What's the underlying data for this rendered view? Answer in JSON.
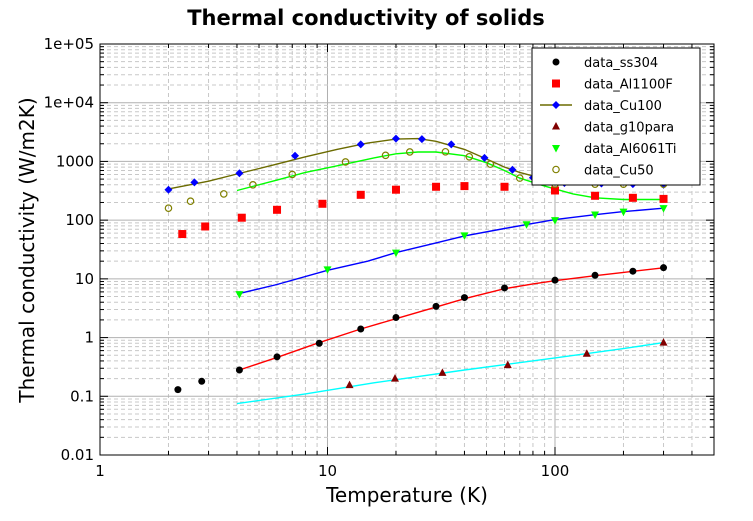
{
  "chart_data": {
    "type": "scatter",
    "title": "Thermal conductivity of solids",
    "xlabel": "Temperature (K)",
    "ylabel": "Thermal conductivity (W/m2K)",
    "xscale": "log",
    "yscale": "log",
    "xlim": [
      1,
      500
    ],
    "ylim": [
      0.01,
      100000
    ],
    "grid": true,
    "legend_position": "top-right",
    "x_ticks": [
      {
        "v": 1,
        "label": "1"
      },
      {
        "v": 10,
        "label": "10"
      },
      {
        "v": 100,
        "label": "100"
      }
    ],
    "y_ticks": [
      {
        "v": 0.01,
        "label": "0.01"
      },
      {
        "v": 0.1,
        "label": "0.1"
      },
      {
        "v": 1,
        "label": "1"
      },
      {
        "v": 10,
        "label": "10"
      },
      {
        "v": 100,
        "label": "100"
      },
      {
        "v": 1000,
        "label": "1000"
      },
      {
        "v": 10000,
        "label": "1e+04"
      },
      {
        "v": 100000,
        "label": "1e+05"
      }
    ],
    "series": [
      {
        "name": "data_ss304",
        "marker": "circle",
        "color": "#000000",
        "points": [
          [
            2.2,
            0.13
          ],
          [
            2.8,
            0.18
          ],
          [
            4.1,
            0.28
          ],
          [
            6.0,
            0.47
          ],
          [
            9.2,
            0.8
          ],
          [
            14,
            1.4
          ],
          [
            20,
            2.2
          ],
          [
            30,
            3.4
          ],
          [
            40,
            4.8
          ],
          [
            60,
            7
          ],
          [
            100,
            9.5
          ],
          [
            150,
            11.5
          ],
          [
            220,
            13.5
          ],
          [
            300,
            15.5
          ]
        ],
        "fit_color": "#ff0000",
        "fit": [
          [
            4.1,
            0.28
          ],
          [
            6,
            0.46
          ],
          [
            9,
            0.8
          ],
          [
            14,
            1.4
          ],
          [
            20,
            2.1
          ],
          [
            30,
            3.3
          ],
          [
            40,
            4.6
          ],
          [
            60,
            6.8
          ],
          [
            80,
            8.2
          ],
          [
            100,
            9.3
          ],
          [
            150,
            11.3
          ],
          [
            200,
            12.9
          ],
          [
            300,
            15.4
          ]
        ]
      },
      {
        "name": "data_Al1100F",
        "marker": "square",
        "color": "#ff0000",
        "points": [
          [
            2.3,
            58
          ],
          [
            2.9,
            78
          ],
          [
            4.2,
            110
          ],
          [
            6,
            150
          ],
          [
            9.5,
            190
          ],
          [
            14,
            270
          ],
          [
            20,
            330
          ],
          [
            30,
            370
          ],
          [
            40,
            380
          ],
          [
            60,
            370
          ],
          [
            100,
            320
          ],
          [
            150,
            260
          ],
          [
            220,
            240
          ],
          [
            300,
            230
          ]
        ]
      },
      {
        "name": "data_Cu100",
        "marker": "diamond",
        "color": "#0000ff",
        "points": [
          [
            2,
            330
          ],
          [
            2.6,
            440
          ],
          [
            4.1,
            630
          ],
          [
            7.2,
            1250
          ],
          [
            14,
            1950
          ],
          [
            20,
            2450
          ],
          [
            26,
            2400
          ],
          [
            35,
            1950
          ],
          [
            49,
            1150
          ],
          [
            65,
            720
          ],
          [
            80,
            530
          ],
          [
            110,
            430
          ],
          [
            160,
            420
          ],
          [
            220,
            410
          ],
          [
            300,
            400
          ]
        ],
        "fit_color": "#6b6b00",
        "fit": [
          [
            2,
            340
          ],
          [
            3,
            460
          ],
          [
            4,
            610
          ],
          [
            6,
            900
          ],
          [
            8,
            1200
          ],
          [
            11,
            1600
          ],
          [
            15,
            2050
          ],
          [
            20,
            2400
          ],
          [
            25,
            2450
          ],
          [
            30,
            2200
          ],
          [
            40,
            1600
          ],
          [
            50,
            1100
          ],
          [
            60,
            800
          ],
          [
            70,
            650
          ],
          [
            90,
            500
          ],
          [
            120,
            430
          ],
          [
            200,
            410
          ],
          [
            300,
            400
          ]
        ]
      },
      {
        "name": "data_g10para",
        "marker": "triangle-up",
        "color": "#800000",
        "points": [
          [
            12.5,
            0.155
          ],
          [
            19.8,
            0.2
          ],
          [
            32,
            0.25
          ],
          [
            62,
            0.34
          ],
          [
            138,
            0.53
          ],
          [
            300,
            0.82
          ]
        ],
        "fit_color": "#00ffff",
        "fit": [
          [
            4,
            0.075
          ],
          [
            8,
            0.11
          ],
          [
            16,
            0.17
          ],
          [
            40,
            0.28
          ],
          [
            100,
            0.45
          ],
          [
            200,
            0.65
          ],
          [
            300,
            0.82
          ]
        ]
      },
      {
        "name": "data_Al6061Ti",
        "marker": "triangle-down",
        "color": "#00ff00",
        "points": [
          [
            4.1,
            5.5
          ],
          [
            10,
            14.5
          ],
          [
            20,
            28
          ],
          [
            40,
            55
          ],
          [
            75,
            85
          ],
          [
            100,
            100
          ],
          [
            150,
            125
          ],
          [
            200,
            140
          ],
          [
            300,
            160
          ]
        ],
        "fit_color": "#0000ff",
        "fit": [
          [
            4,
            5.5
          ],
          [
            6,
            8
          ],
          [
            10,
            14
          ],
          [
            15,
            20
          ],
          [
            20,
            28
          ],
          [
            30,
            41
          ],
          [
            40,
            54
          ],
          [
            60,
            72
          ],
          [
            80,
            88
          ],
          [
            100,
            102
          ],
          [
            150,
            124
          ],
          [
            200,
            140
          ],
          [
            300,
            160
          ]
        ]
      },
      {
        "name": "data_Cu50",
        "marker": "open-circle",
        "color": "#808000",
        "points": [
          [
            2,
            160
          ],
          [
            2.5,
            210
          ],
          [
            3.5,
            280
          ],
          [
            4.7,
            400
          ],
          [
            7,
            600
          ],
          [
            12,
            980
          ],
          [
            18,
            1270
          ],
          [
            23,
            1450
          ],
          [
            33,
            1460
          ],
          [
            42,
            1200
          ],
          [
            52,
            900
          ],
          [
            70,
            520
          ],
          [
            100,
            410
          ],
          [
            150,
            410
          ],
          [
            200,
            410
          ],
          [
            300,
            410
          ]
        ],
        "fit_color": "#00ff00",
        "fit": [
          [
            4,
            320
          ],
          [
            6,
            480
          ],
          [
            8,
            650
          ],
          [
            12,
            900
          ],
          [
            16,
            1150
          ],
          [
            20,
            1350
          ],
          [
            25,
            1450
          ],
          [
            30,
            1450
          ],
          [
            40,
            1250
          ],
          [
            50,
            950
          ],
          [
            60,
            700
          ],
          [
            70,
            520
          ],
          [
            90,
            380
          ],
          [
            120,
            280
          ],
          [
            150,
            240
          ],
          [
            200,
            225
          ],
          [
            300,
            225
          ]
        ]
      }
    ]
  }
}
